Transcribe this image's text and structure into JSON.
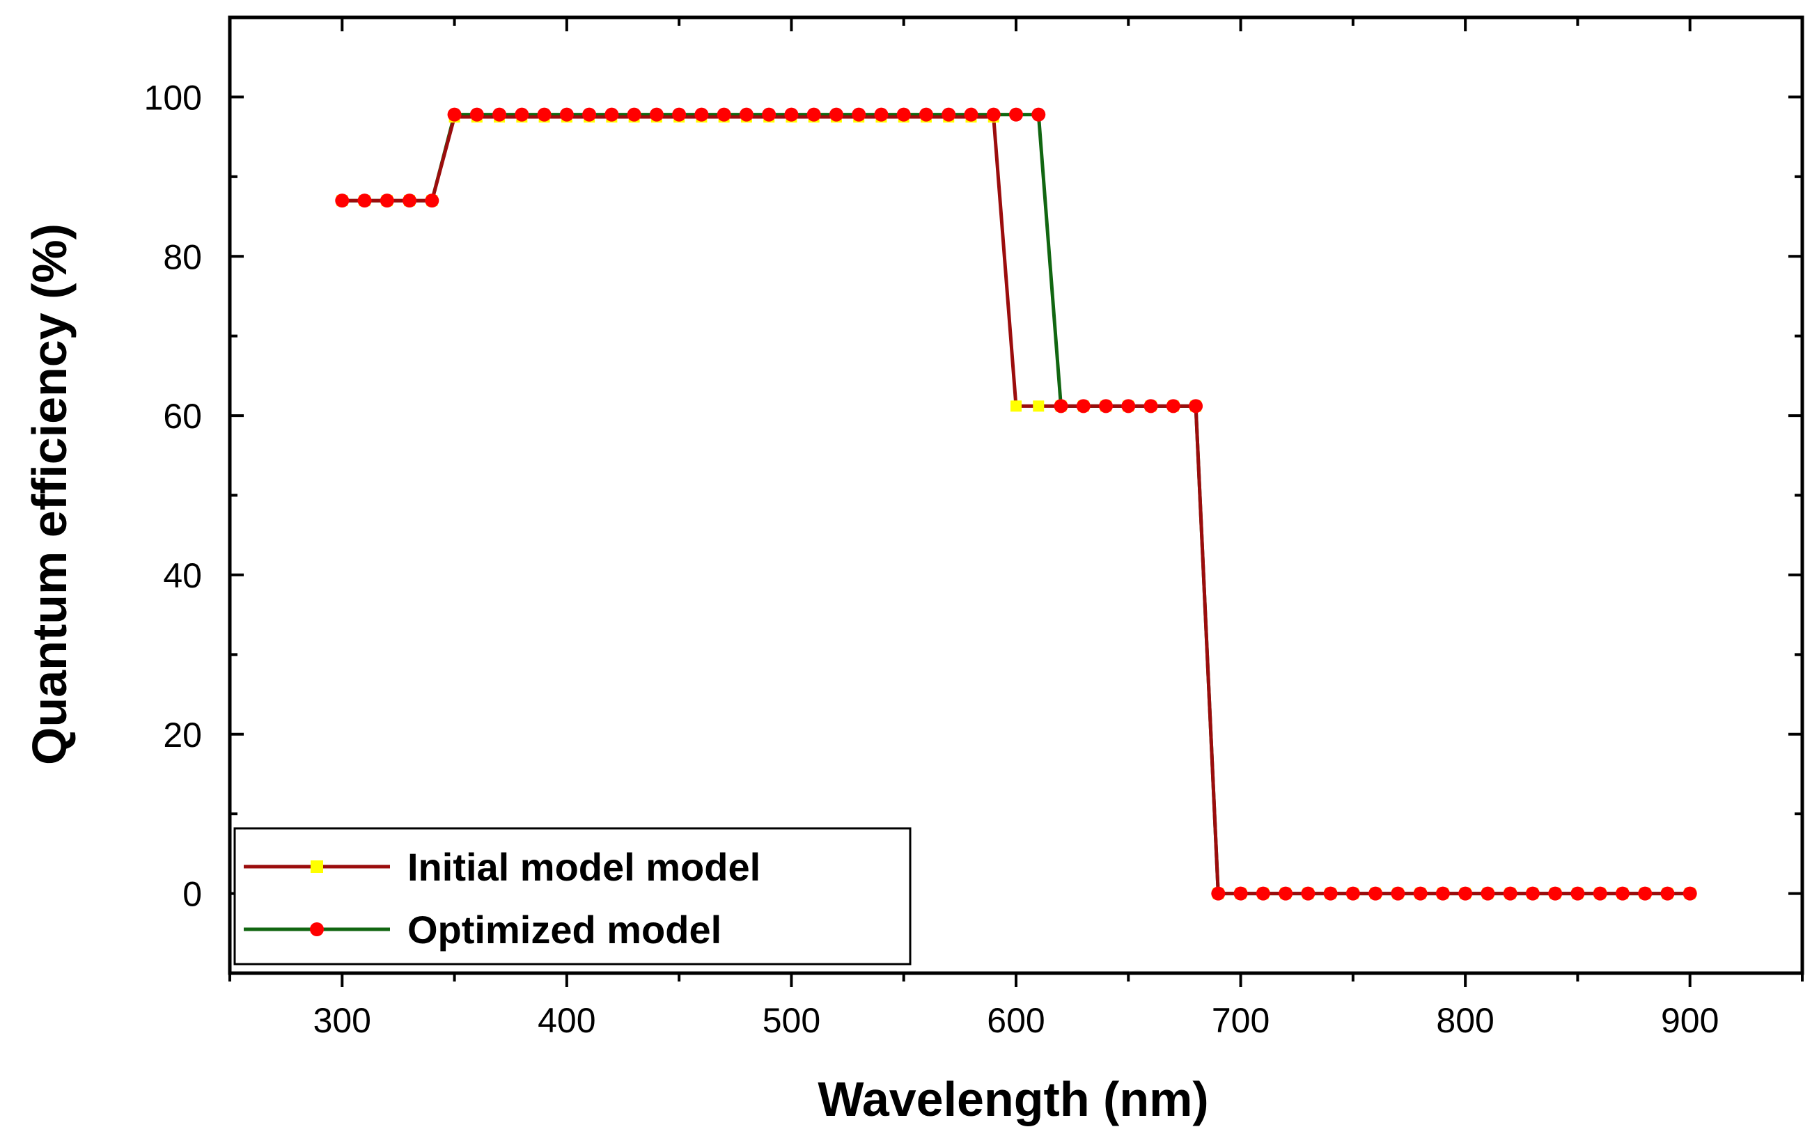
{
  "chart_data": {
    "type": "line",
    "title": "",
    "xlabel": "Wavelength (nm)",
    "ylabel": "Quantum efficiency (%)",
    "xlim": [
      250,
      950
    ],
    "ylim": [
      -10,
      110
    ],
    "xticks": [
      "300",
      "400",
      "500",
      "600",
      "700",
      "800",
      "900"
    ],
    "yticks": [
      "0",
      "20",
      "40",
      "60",
      "80",
      "100"
    ],
    "legend_position": "bottom-left",
    "grid": false,
    "series": [
      {
        "name": "Initial model model",
        "line_color": "#9b0d0d",
        "marker_color": "#ffff00",
        "marker": "square",
        "x": [
          300,
          310,
          320,
          330,
          340,
          350,
          360,
          370,
          380,
          390,
          400,
          410,
          420,
          430,
          440,
          450,
          460,
          470,
          480,
          490,
          500,
          510,
          520,
          530,
          540,
          550,
          560,
          570,
          580,
          590,
          600,
          610,
          620,
          630,
          640,
          650,
          660,
          670,
          680,
          690,
          700,
          710,
          720,
          730,
          740,
          750,
          760,
          770,
          780,
          790,
          800,
          810,
          820,
          830,
          840,
          850,
          860,
          870,
          880,
          890,
          900
        ],
        "y": [
          87,
          87,
          87,
          87,
          87,
          97.5,
          97.5,
          97.5,
          97.5,
          97.5,
          97.5,
          97.5,
          97.5,
          97.5,
          97.5,
          97.5,
          97.5,
          97.5,
          97.5,
          97.5,
          97.5,
          97.5,
          97.5,
          97.5,
          97.5,
          97.5,
          97.5,
          97.5,
          97.5,
          97.5,
          61.2,
          61.2,
          61.2,
          61.2,
          61.2,
          61.2,
          61.2,
          61.2,
          61.2,
          0,
          0,
          0,
          0,
          0,
          0,
          0,
          0,
          0,
          0,
          0,
          0,
          0,
          0,
          0,
          0,
          0,
          0,
          0,
          0,
          0,
          0
        ]
      },
      {
        "name": "Optimized model",
        "line_color": "#116611",
        "marker_color": "#ff0000",
        "marker": "circle",
        "x": [
          300,
          310,
          320,
          330,
          340,
          350,
          360,
          370,
          380,
          390,
          400,
          410,
          420,
          430,
          440,
          450,
          460,
          470,
          480,
          490,
          500,
          510,
          520,
          530,
          540,
          550,
          560,
          570,
          580,
          590,
          600,
          610,
          620,
          630,
          640,
          650,
          660,
          670,
          680,
          690,
          700,
          710,
          720,
          730,
          740,
          750,
          760,
          770,
          780,
          790,
          800,
          810,
          820,
          830,
          840,
          850,
          860,
          870,
          880,
          890,
          900
        ],
        "y": [
          87,
          87,
          87,
          87,
          87,
          97.8,
          97.8,
          97.8,
          97.8,
          97.8,
          97.8,
          97.8,
          97.8,
          97.8,
          97.8,
          97.8,
          97.8,
          97.8,
          97.8,
          97.8,
          97.8,
          97.8,
          97.8,
          97.8,
          97.8,
          97.8,
          97.8,
          97.8,
          97.8,
          97.8,
          97.8,
          97.8,
          61.2,
          61.2,
          61.2,
          61.2,
          61.2,
          61.2,
          61.2,
          0,
          0,
          0,
          0,
          0,
          0,
          0,
          0,
          0,
          0,
          0,
          0,
          0,
          0,
          0,
          0,
          0,
          0,
          0,
          0,
          0,
          0
        ]
      }
    ]
  }
}
